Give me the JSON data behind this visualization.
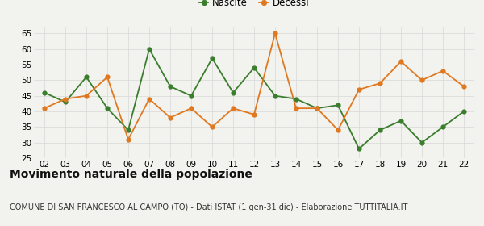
{
  "x_labels": [
    "02",
    "03",
    "04",
    "05",
    "06",
    "07",
    "08",
    "09",
    "10",
    "11",
    "12",
    "13",
    "14",
    "15",
    "16",
    "17",
    "18",
    "19",
    "20",
    "21",
    "22"
  ],
  "nascite": [
    46,
    43,
    51,
    41,
    34,
    60,
    48,
    45,
    57,
    46,
    54,
    45,
    44,
    41,
    42,
    28,
    34,
    37,
    30,
    35,
    40
  ],
  "decessi": [
    41,
    44,
    45,
    51,
    31,
    44,
    38,
    41,
    35,
    41,
    39,
    65,
    41,
    41,
    34,
    47,
    49,
    56,
    50,
    53,
    48
  ],
  "nascite_color": "#3a7d2c",
  "decessi_color": "#e07820",
  "ylim": [
    25,
    67
  ],
  "yticks": [
    25,
    30,
    35,
    40,
    45,
    50,
    55,
    60,
    65
  ],
  "title": "Movimento naturale della popolazione",
  "subtitle": "COMUNE DI SAN FRANCESCO AL CAMPO (TO) - Dati ISTAT (1 gen-31 dic) - Elaborazione TUTTITALIA.IT",
  "legend_nascite": "Nascite",
  "legend_decessi": "Decessi",
  "bg_color": "#f2f2ee",
  "grid_color": "#d8d8d8",
  "title_fontsize": 10,
  "subtitle_fontsize": 7,
  "axis_fontsize": 7.5,
  "legend_fontsize": 8.5
}
